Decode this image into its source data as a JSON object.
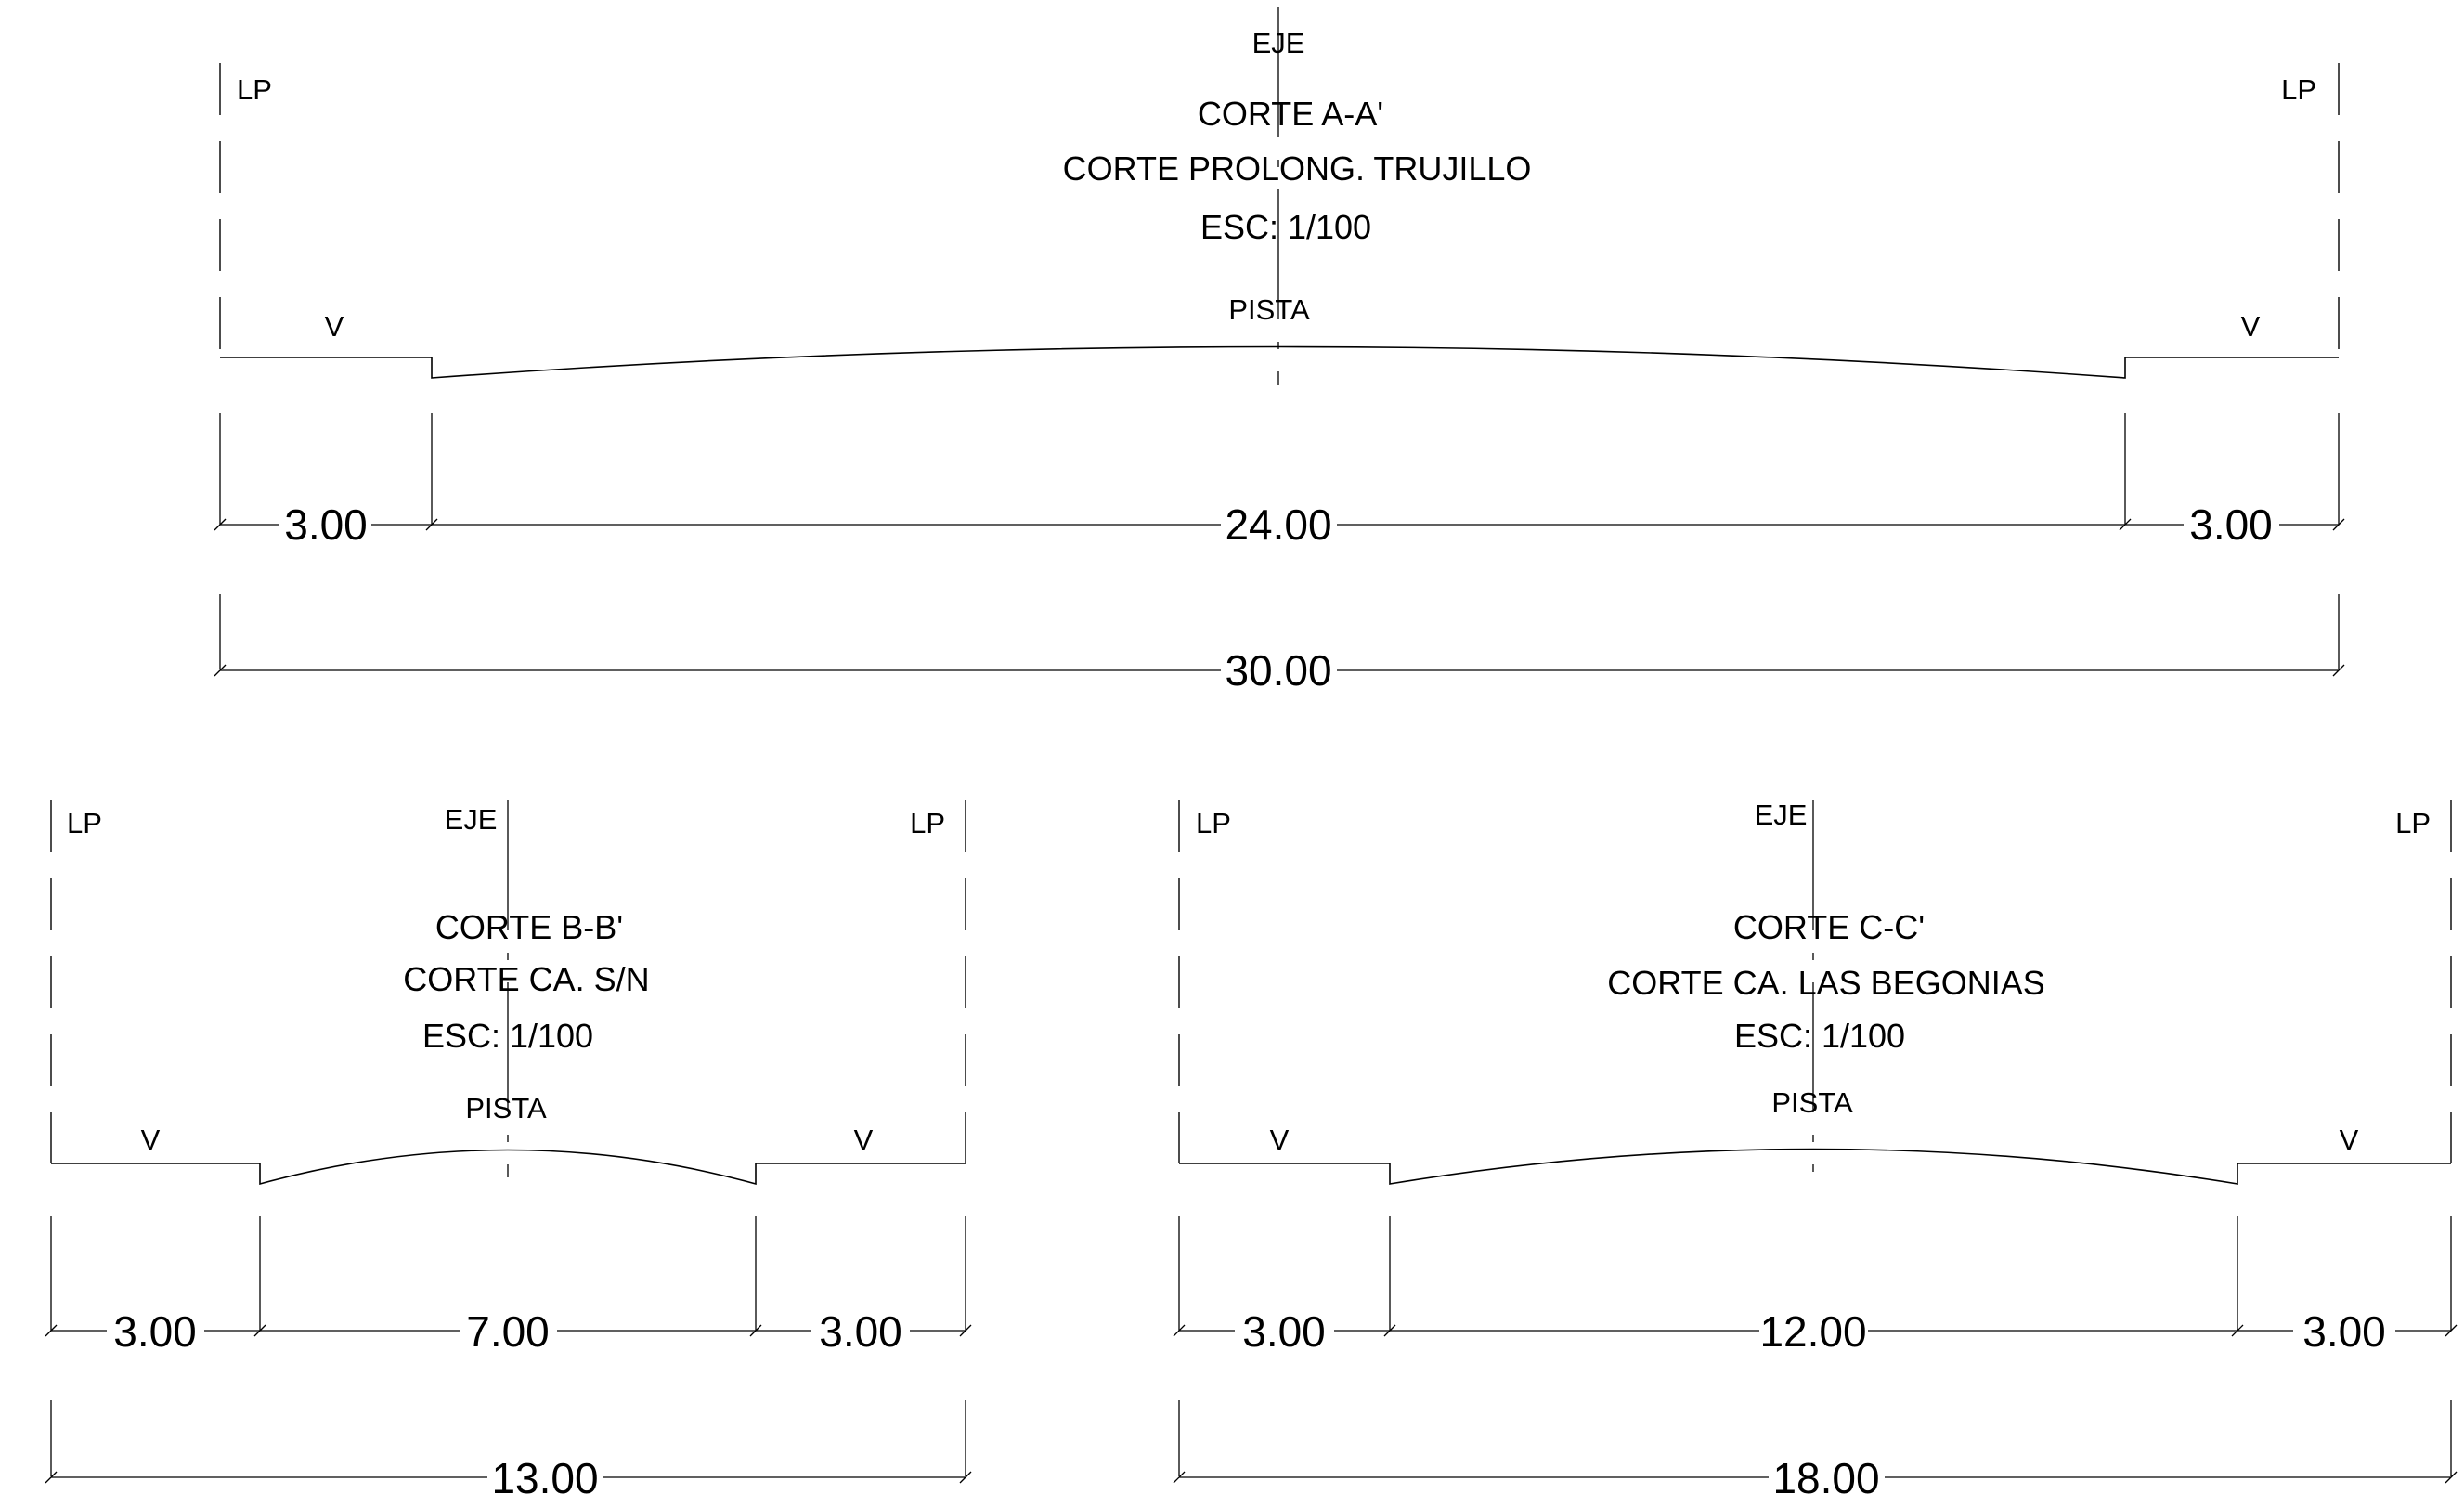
{
  "sections": {
    "a": {
      "eje": "EJE",
      "lp_left": "LP",
      "lp_right": "LP",
      "title": "CORTE A-A'",
      "subtitle": "CORTE PROLONG. TRUJILLO",
      "scale": "ESC: 1/100",
      "pista": "PISTA",
      "v_left": "V",
      "v_right": "V",
      "dims": [
        "3.00",
        "24.00",
        "3.00"
      ],
      "total": "30.00"
    },
    "b": {
      "eje": "EJE",
      "lp_left": "LP",
      "lp_right": "LP",
      "title": "CORTE B-B'",
      "subtitle": "CORTE CA. S/N",
      "scale": "ESC: 1/100",
      "pista": "PISTA",
      "v_left": "V",
      "v_right": "V",
      "dims": [
        "3.00",
        "7.00",
        "3.00"
      ],
      "total": "13.00"
    },
    "c": {
      "eje": "EJE",
      "lp_left": "LP",
      "lp_right": "LP",
      "title": "CORTE C-C'",
      "subtitle": "CORTE CA. LAS BEGONIAS",
      "scale": "ESC: 1/100",
      "pista": "PISTA",
      "v_left": "V",
      "v_right": "V",
      "dims": [
        "3.00",
        "12.00",
        "3.00"
      ],
      "total": "18.00"
    }
  }
}
